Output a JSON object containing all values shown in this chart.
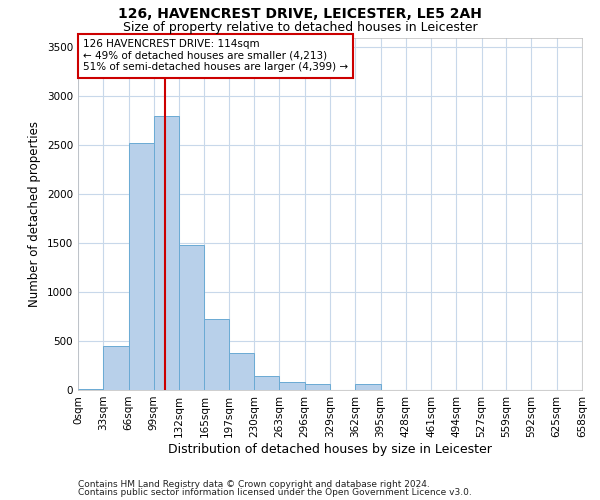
{
  "title1": "126, HAVENCREST DRIVE, LEICESTER, LE5 2AH",
  "title2": "Size of property relative to detached houses in Leicester",
  "xlabel": "Distribution of detached houses by size in Leicester",
  "ylabel": "Number of detached properties",
  "annotation_line1": "126 HAVENCREST DRIVE: 114sqm",
  "annotation_line2": "← 49% of detached houses are smaller (4,213)",
  "annotation_line3": "51% of semi-detached houses are larger (4,399) →",
  "red_line_x": 114,
  "bin_edges": [
    0,
    33,
    66,
    99,
    132,
    165,
    197,
    230,
    263,
    296,
    329,
    362,
    395,
    428,
    461,
    494,
    527,
    559,
    592,
    625,
    658
  ],
  "bin_counts": [
    10,
    450,
    2520,
    2800,
    1480,
    730,
    380,
    140,
    80,
    60,
    0,
    60,
    0,
    0,
    0,
    0,
    0,
    0,
    0,
    0
  ],
  "bar_color": "#b8d0ea",
  "bar_edge_color": "#6aaad4",
  "red_line_color": "#cc0000",
  "background_color": "#ffffff",
  "grid_color": "#c8d8ea",
  "annotation_box_edge": "#cc0000",
  "footnote1": "Contains HM Land Registry data © Crown copyright and database right 2024.",
  "footnote2": "Contains public sector information licensed under the Open Government Licence v3.0.",
  "ylim": [
    0,
    3600
  ],
  "yticks": [
    0,
    500,
    1000,
    1500,
    2000,
    2500,
    3000,
    3500
  ],
  "title1_fontsize": 10,
  "title2_fontsize": 9,
  "xlabel_fontsize": 9,
  "ylabel_fontsize": 8.5,
  "tick_fontsize": 7.5,
  "footnote_fontsize": 6.5,
  "ann_fontsize": 7.5
}
